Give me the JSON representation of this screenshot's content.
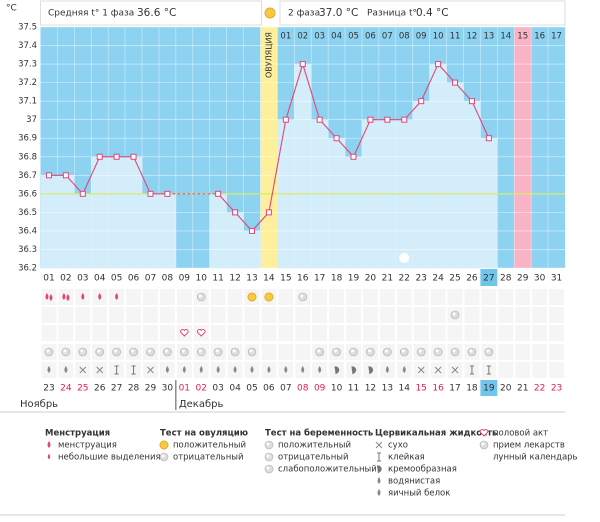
{
  "chart_data": {
    "type": "line",
    "y_unit": "°C",
    "header": {
      "phase1_label": "Средняя t° 1 фаза",
      "phase1_value": "36.6 °C",
      "phase2_label": "2 фаза",
      "phase2_value": "37.0 °C",
      "diff_label": "Разница t°",
      "diff_value": "0.4 °C"
    },
    "categories": [
      "01",
      "02",
      "03",
      "04",
      "05",
      "06",
      "07",
      "08",
      "09",
      "10",
      "11",
      "12",
      "13",
      "14",
      "15",
      "16",
      "17",
      "18",
      "19",
      "20",
      "21",
      "22",
      "23",
      "24",
      "25",
      "26",
      "27",
      "28",
      "29",
      "30",
      "31"
    ],
    "top_labels": [
      null,
      null,
      null,
      null,
      null,
      null,
      null,
      null,
      null,
      null,
      null,
      null,
      null,
      "ОВУЛЯЦИЯ",
      "01",
      "02",
      "03",
      "04",
      "05",
      "06",
      "07",
      "08",
      "09",
      "10",
      "11",
      "12",
      "13",
      "14",
      "15",
      "16",
      "17"
    ],
    "values": [
      36.7,
      36.7,
      36.6,
      36.8,
      36.8,
      36.8,
      36.6,
      36.6,
      null,
      null,
      36.6,
      36.5,
      36.4,
      36.5,
      37.0,
      37.3,
      37.0,
      36.9,
      36.8,
      37.0,
      37.0,
      37.0,
      37.1,
      37.3,
      37.2,
      37.1,
      36.9,
      null,
      null,
      null,
      null
    ],
    "color": "#e2457a",
    "bar_color": "#d3eefa",
    "background_color": "#8dd3f1",
    "ylim": [
      36.2,
      37.5
    ],
    "yticks": [
      36.2,
      36.3,
      36.4,
      36.5,
      36.6,
      36.7,
      36.8,
      36.9,
      37,
      37.1,
      37.2,
      37.3,
      37.4,
      37.5
    ],
    "grid": true,
    "coverline": 36.6,
    "coverline_color": "#d9ec6a",
    "bridge_gaps": true,
    "ovulation_index": 13,
    "ovulation_color": "#fdef9c",
    "highlight_index": 28,
    "highlight_color": "#f8b3c6",
    "today_index": 26,
    "today_color": "#6fc6ea"
  },
  "calendar": {
    "dates": [
      "23",
      "24",
      "25",
      "26",
      "27",
      "28",
      "29",
      "30",
      "01",
      "02",
      "03",
      "04",
      "05",
      "06",
      "07",
      "08",
      "09",
      "10",
      "11",
      "12",
      "13",
      "14",
      "15",
      "16",
      "17",
      "18",
      "19",
      "20",
      "21",
      "22",
      "23"
    ],
    "weekends": [
      1,
      2,
      8,
      9,
      15,
      16,
      22,
      23,
      29,
      30
    ],
    "weekend_color": "#e0204f",
    "months": [
      {
        "label": "Ноябрь",
        "start": 0
      },
      {
        "label": "Декабрь",
        "start": 8
      }
    ]
  },
  "legend": [
    {
      "title": "Менструация",
      "items": [
        "менструация",
        "небольшие выделения"
      ]
    },
    {
      "title": "Тест на овуляцию",
      "items": [
        "положительный",
        "отрицательный"
      ]
    },
    {
      "title": "Тест на беременность",
      "items": [
        "положительный",
        "отрицательный",
        "слабоположительный"
      ]
    },
    {
      "title": "Цервикальная жидкость",
      "items": [
        "сухо",
        "клейкая",
        "кремообразная",
        "водянистая",
        "яичный белок"
      ]
    },
    {
      "items": [
        "половой акт",
        "прием лекарств",
        "лунный календарь"
      ]
    }
  ]
}
